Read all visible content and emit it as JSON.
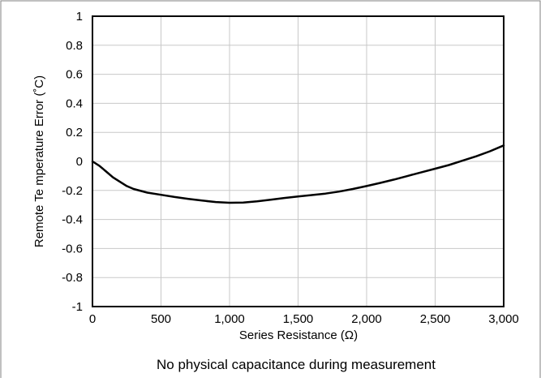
{
  "chart_data": {
    "type": "line",
    "title": "",
    "caption": "No physical capacitance during measurement",
    "xlabel": "Series Resistance (Ω)",
    "ylabel": "Remote Te mperature Error (˚C)",
    "xlim": [
      0,
      3000
    ],
    "ylim": [
      -1,
      1
    ],
    "xticks": [
      0,
      500,
      1000,
      1500,
      2000,
      2500,
      3000
    ],
    "xtick_labels": [
      "0",
      "500",
      "1,000",
      "1,500",
      "2,000",
      "2,500",
      "3,000"
    ],
    "yticks": [
      -1,
      -0.8,
      -0.6,
      -0.4,
      -0.2,
      0,
      0.2,
      0.4,
      0.6,
      0.8,
      1
    ],
    "ytick_labels": [
      "-1",
      "-0.8",
      "-0.6",
      "-0.4",
      "-0.2",
      "0",
      "0.2",
      "0.4",
      "0.6",
      "0.8",
      "1"
    ],
    "grid": true,
    "line_color": "#000000",
    "grid_color": "#c8c8c8",
    "series": [
      {
        "x": [
          0,
          50,
          100,
          150,
          200,
          250,
          300,
          400,
          500,
          600,
          700,
          800,
          900,
          1000,
          1100,
          1200,
          1300,
          1400,
          1500,
          1600,
          1700,
          1800,
          1900,
          2000,
          2100,
          2200,
          2300,
          2400,
          2500,
          2600,
          2700,
          2800,
          2900,
          3000
        ],
        "y": [
          0,
          -0.03,
          -0.07,
          -0.11,
          -0.14,
          -0.17,
          -0.19,
          -0.215,
          -0.23,
          -0.245,
          -0.258,
          -0.27,
          -0.28,
          -0.285,
          -0.283,
          -0.275,
          -0.264,
          -0.252,
          -0.242,
          -0.232,
          -0.222,
          -0.208,
          -0.19,
          -0.17,
          -0.148,
          -0.125,
          -0.1,
          -0.075,
          -0.05,
          -0.025,
          0.005,
          0.035,
          0.07,
          0.11
        ]
      }
    ]
  }
}
